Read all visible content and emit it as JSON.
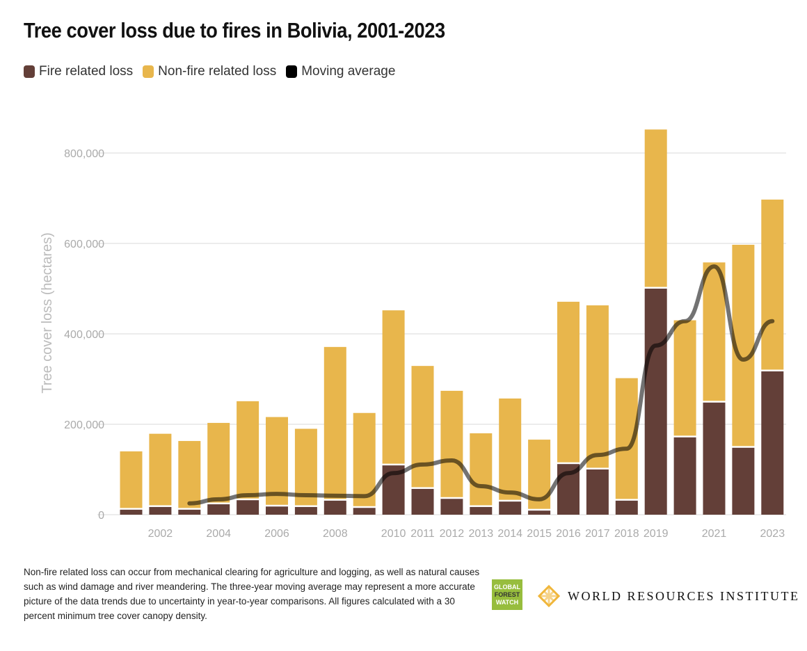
{
  "chart_data": {
    "type": "bar",
    "stacked": true,
    "title": "Tree cover loss due to fires in Bolivia, 2001-2023",
    "ylabel": "Tree cover loss (hectares)",
    "xlabel": "",
    "ylim": [
      0,
      850000
    ],
    "yticks": [
      0,
      200000,
      400000,
      600000,
      800000
    ],
    "ytick_labels": [
      "0",
      "200,000",
      "400,000",
      "600,000",
      "800,000"
    ],
    "grid": true,
    "legend_placement": "top-left",
    "categories": [
      2001,
      2002,
      2003,
      2004,
      2005,
      2006,
      2007,
      2008,
      2009,
      2010,
      2011,
      2012,
      2013,
      2014,
      2015,
      2016,
      2017,
      2018,
      2019,
      2020,
      2021,
      2022,
      2023
    ],
    "xtick_labels": [
      "",
      "2002",
      "",
      "2004",
      "",
      "2006",
      "",
      "2008",
      "",
      "2010",
      "2011",
      "2012",
      "2013",
      "2014",
      "2015",
      "2016",
      "2017",
      "2018",
      "2019",
      "",
      "2021",
      "",
      "2023"
    ],
    "series": [
      {
        "name": "Fire related loss",
        "color": "#633f38",
        "values": [
          11000,
          17000,
          11000,
          23000,
          32000,
          18000,
          17000,
          31000,
          15000,
          109000,
          57000,
          35000,
          17000,
          29000,
          9000,
          112000,
          100000,
          31000,
          500000,
          171000,
          248000,
          148000,
          317000
        ]
      },
      {
        "name": "Non-fire related loss",
        "color": "#e8b64c",
        "values": [
          129000,
          162000,
          152000,
          180000,
          219000,
          198000,
          173000,
          340000,
          210000,
          343000,
          272000,
          239000,
          163000,
          228000,
          157000,
          359000,
          363000,
          271000,
          352000,
          259000,
          310000,
          449000,
          380000
        ]
      }
    ],
    "line": {
      "name": "Moving average",
      "color": "#000000",
      "x": [
        2003,
        2004,
        2005,
        2006,
        2007,
        2008,
        2009,
        2010,
        2011,
        2012,
        2013,
        2014,
        2015,
        2016,
        2017,
        2018,
        2019,
        2020,
        2021,
        2022,
        2023
      ],
      "values": [
        25000,
        34000,
        43000,
        46000,
        43000,
        42000,
        41000,
        92000,
        111000,
        120000,
        63000,
        49000,
        34000,
        92000,
        132000,
        146000,
        374000,
        428000,
        549000,
        343000,
        428000
      ]
    }
  },
  "note": "Non-fire related loss can occur from mechanical clearing for agriculture and logging, as well as natural causes such as wind damage and river meandering. The three-year moving average may represent a more accurate picture of the data trends due to uncertainty in year-to-year comparisons. All figures calculated with a 30 percent minimum tree cover canopy density.",
  "logos": {
    "gfw": "GLOBAL FOREST WATCH",
    "wri": "WORLD RESOURCES INSTITUTE"
  }
}
